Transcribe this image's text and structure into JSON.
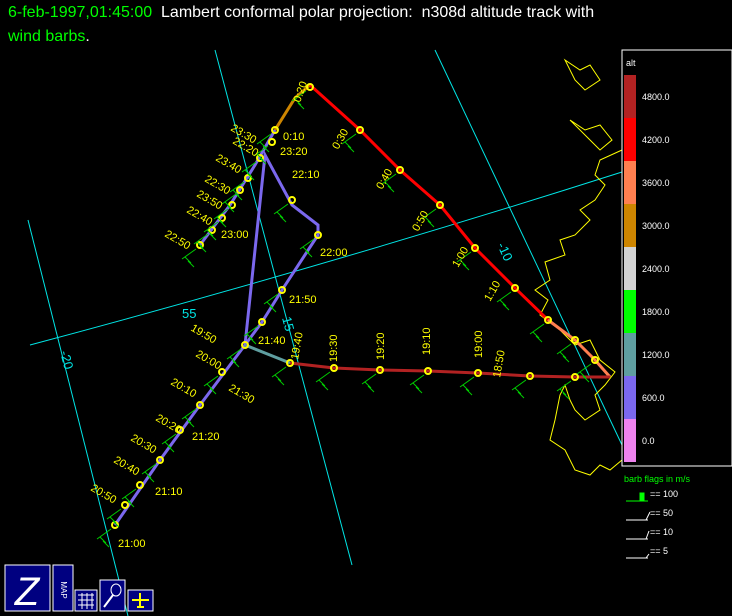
{
  "header": {
    "date": "6-feb-1997,01:45:00",
    "title": "Lambert conformal polar projection:  n308d altitude track with",
    "title2": "wind barbs",
    "period": "."
  },
  "grid_labels": [
    "55",
    "15",
    "-10",
    "-20"
  ],
  "track_labels": [
    "0:20",
    "0:30",
    "0:40",
    "0:50",
    "1:00",
    "1:10",
    "18:50",
    "19:00",
    "19:10",
    "19:20",
    "19:30",
    "19:40",
    "23:30",
    "0:10",
    "23:20",
    "22:20",
    "23:40",
    "22:30",
    "23:50",
    "22:40",
    "23:00",
    "22:50",
    "22:10",
    "22:00",
    "21:50",
    "21:40",
    "19:50",
    "20:00",
    "21:30",
    "20:10",
    "21:20",
    "20:20",
    "20:30",
    "21:10",
    "20:40",
    "20:50",
    "21:00"
  ],
  "colorbar": {
    "title": "alt",
    "labels": [
      "4800.0",
      "4200.0",
      "3600.0",
      "3000.0",
      "2400.0",
      "1800.0",
      "1200.0",
      "600.0",
      "0.0"
    ]
  },
  "barb_legend": {
    "title": "barb flags in m/s",
    "items": [
      "== 100",
      "== 50",
      "== 10",
      "== 5"
    ]
  },
  "icons": {
    "map": "MAP"
  }
}
